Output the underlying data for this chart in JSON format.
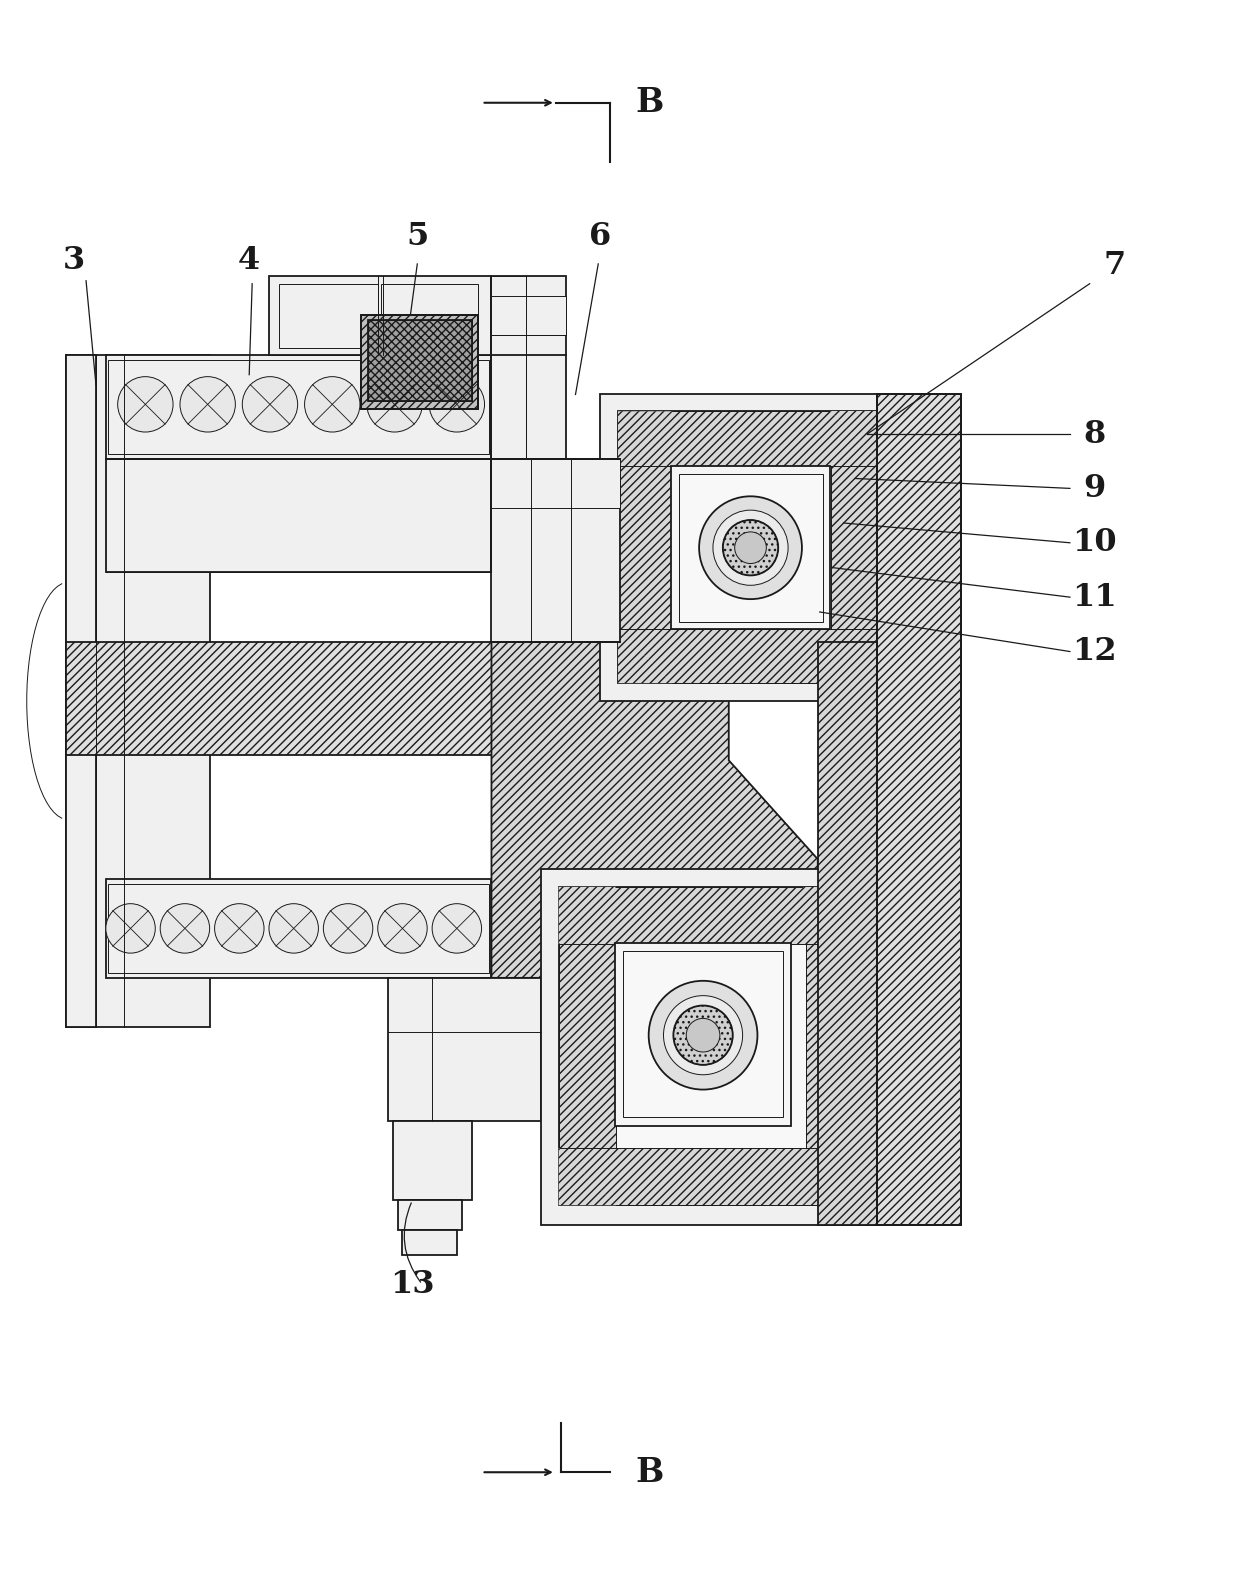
{
  "background_color": "#ffffff",
  "line_color": "#1a1a1a",
  "label_color": "#1a1a1a",
  "fig_width": 12.4,
  "fig_height": 15.75,
  "lw_main": 1.3,
  "lw_thin": 0.7,
  "lw_thick": 1.8
}
